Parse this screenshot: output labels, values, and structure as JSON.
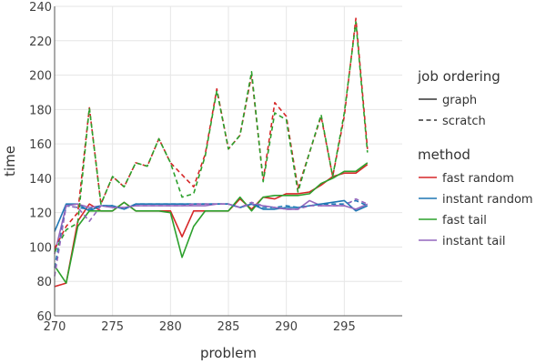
{
  "chart_data": {
    "type": "line",
    "xlabel": "problem",
    "ylabel": "time",
    "xlim": [
      270,
      300
    ],
    "ylim": [
      60,
      240
    ],
    "x_ticks": [
      270,
      275,
      280,
      285,
      290,
      295
    ],
    "y_ticks": [
      60,
      80,
      100,
      120,
      140,
      160,
      180,
      200,
      220,
      240
    ],
    "grid": true,
    "legend_position": "right",
    "legend_groups": [
      {
        "title": "job ordering",
        "entries": [
          {
            "label": "graph",
            "style": "solid"
          },
          {
            "label": "scratch",
            "style": "dashed"
          }
        ]
      },
      {
        "title": "method",
        "entries": [
          {
            "label": "fast random",
            "color": "#d62728"
          },
          {
            "label": "instant random",
            "color": "#1f77b4"
          },
          {
            "label": "fast tail",
            "color": "#2ca02c"
          },
          {
            "label": "instant tail",
            "color": "#9467bd"
          }
        ]
      }
    ],
    "x": [
      270,
      271,
      272,
      273,
      274,
      275,
      276,
      277,
      278,
      279,
      280,
      281,
      282,
      283,
      284,
      285,
      286,
      287,
      288,
      289,
      290,
      291,
      292,
      293,
      294,
      295,
      296,
      297
    ],
    "series": [
      {
        "name": "fast random",
        "ordering": "graph",
        "color": "#d62728",
        "dashed": false,
        "values": [
          77,
          79,
          115,
          125,
          121,
          121,
          126,
          121,
          121,
          121,
          121,
          106,
          121,
          121,
          121,
          121,
          128,
          122,
          129,
          128,
          131,
          131,
          132,
          136,
          141,
          143,
          143,
          148
        ]
      },
      {
        "name": "instant random",
        "ordering": "graph",
        "color": "#1f77b4",
        "dashed": false,
        "values": [
          109,
          125,
          125,
          121,
          124,
          124,
          122,
          125,
          125,
          125,
          125,
          125,
          125,
          125,
          125,
          125,
          123,
          125,
          122,
          122,
          123,
          123,
          124,
          125,
          126,
          127,
          121,
          124
        ]
      },
      {
        "name": "fast tail",
        "ordering": "graph",
        "color": "#2ca02c",
        "dashed": false,
        "values": [
          89,
          79,
          112,
          121,
          121,
          121,
          126,
          121,
          121,
          121,
          120,
          94,
          112,
          121,
          121,
          121,
          129,
          121,
          129,
          130,
          130,
          130,
          131,
          137,
          140,
          144,
          144,
          149
        ]
      },
      {
        "name": "instant tail",
        "ordering": "graph",
        "color": "#9467bd",
        "dashed": false,
        "values": [
          96,
          124,
          125,
          123,
          124,
          123,
          123,
          124,
          124,
          124,
          124,
          124,
          124,
          124,
          125,
          125,
          123,
          125,
          124,
          123,
          122,
          122,
          127,
          124,
          124,
          124,
          122,
          125
        ]
      },
      {
        "name": "fast random",
        "ordering": "scratch",
        "color": "#d62728",
        "dashed": true,
        "values": [
          99,
          112,
          120,
          181,
          125,
          141,
          135,
          149,
          147,
          163,
          149,
          142,
          135,
          154,
          192,
          157,
          165,
          200,
          139,
          184,
          176,
          134,
          155,
          176,
          141,
          176,
          233,
          157
        ]
      },
      {
        "name": "instant random",
        "ordering": "scratch",
        "color": "#1f77b4",
        "dashed": true,
        "values": [
          88,
          124,
          123,
          122,
          124,
          124,
          122,
          125,
          125,
          125,
          125,
          125,
          125,
          125,
          125,
          125,
          123,
          125,
          123,
          123,
          124,
          123,
          124,
          125,
          125,
          125,
          127,
          124
        ]
      },
      {
        "name": "fast tail",
        "ordering": "scratch",
        "color": "#2ca02c",
        "dashed": true,
        "values": [
          97,
          110,
          114,
          181,
          125,
          141,
          135,
          149,
          147,
          163,
          149,
          129,
          131,
          153,
          191,
          157,
          165,
          202,
          138,
          178,
          174,
          132,
          155,
          177,
          141,
          178,
          231,
          155
        ]
      },
      {
        "name": "instant tail",
        "ordering": "scratch",
        "color": "#9467bd",
        "dashed": true,
        "values": [
          83,
          124,
          123,
          115,
          124,
          123,
          123,
          124,
          124,
          124,
          124,
          124,
          125,
          125,
          125,
          125,
          123,
          126,
          124,
          123,
          122,
          122,
          124,
          124,
          124,
          124,
          128,
          125
        ]
      }
    ]
  }
}
